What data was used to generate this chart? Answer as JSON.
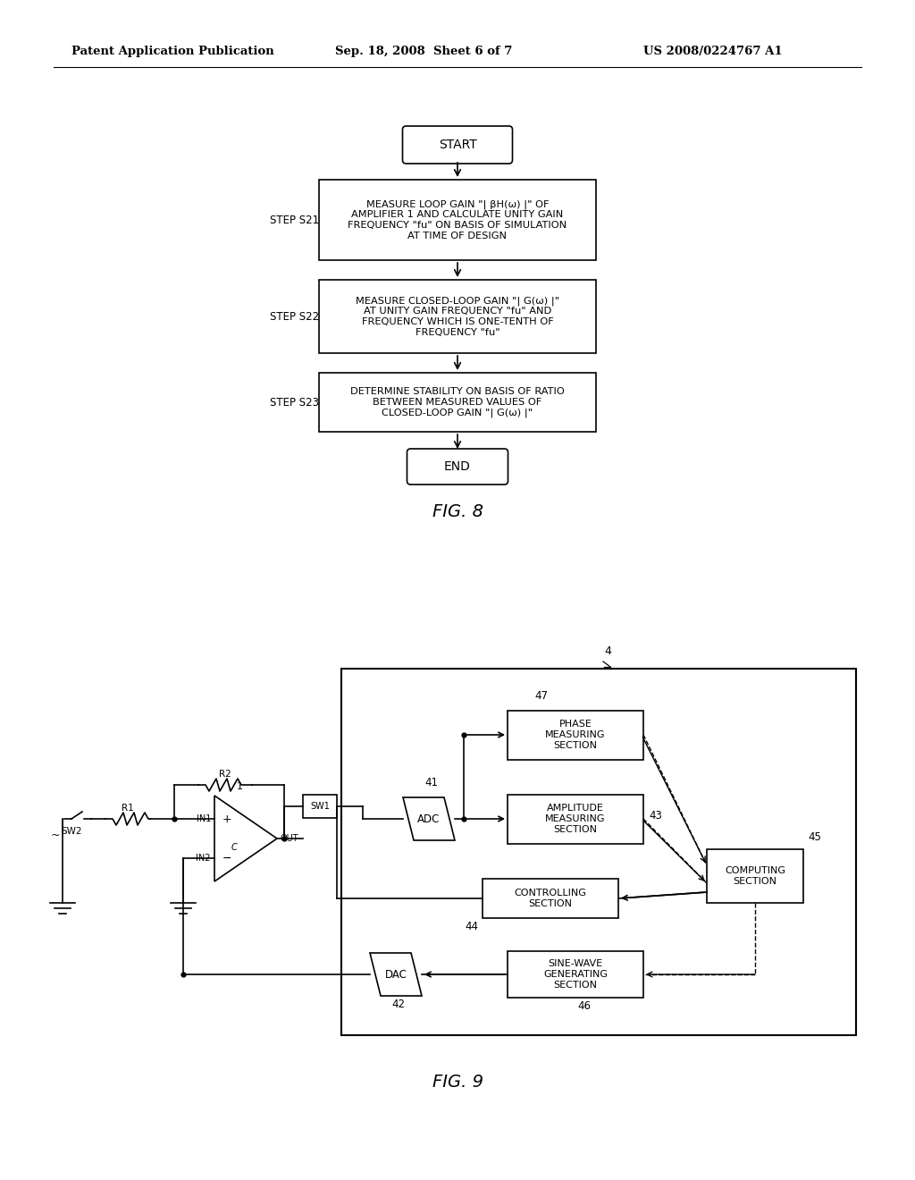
{
  "bg_color": "#ffffff",
  "header_left": "Patent Application Publication",
  "header_mid": "Sep. 18, 2008  Sheet 6 of 7",
  "header_right": "US 2008/0224767 A1",
  "fig8_label": "FIG. 8",
  "fig9_label": "FIG. 9",
  "flowchart": {
    "start_text": "START",
    "step_s21_label": "STEP S21",
    "step_s21_text": "MEASURE LOOP GAIN \"| βH(ω) |\" OF\nAMPLIFIER 1 AND CALCULATE UNITY GAIN\nFREQUENCY \"fu\" ON BASIS OF SIMULATION\nAT TIME OF DESIGN",
    "step_s22_label": "STEP S22",
    "step_s22_text": "MEASURE CLOSED-LOOP GAIN \"| G(ω) |\"\nAT UNITY GAIN FREQUENCY \"fu\" AND\nFREQUENCY WHICH IS ONE-TENTH OF\nFREQUENCY \"fu\"",
    "step_s23_label": "STEP S23",
    "step_s23_text": "DETERMINE STABILITY ON BASIS OF RATIO\nBETWEEN MEASURED VALUES OF\nCLOSED-LOOP GAIN \"| G(ω) |\"",
    "end_text": "END"
  }
}
